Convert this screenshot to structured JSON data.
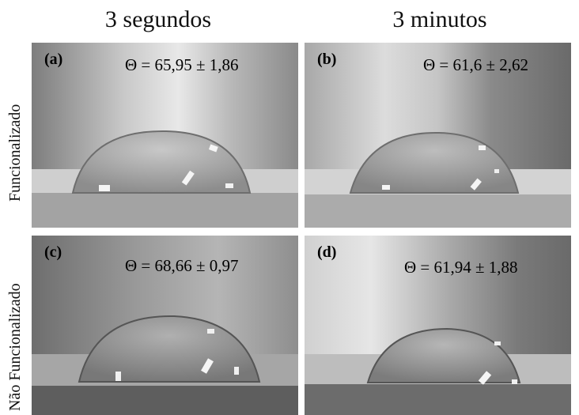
{
  "columns": {
    "left": "3 segundos",
    "right": "3 minutos"
  },
  "rows": {
    "top": "Funcionalizado",
    "bottom": "Não Funcionalizado"
  },
  "panels": {
    "a": {
      "tag": "(a)",
      "angle": "Θ = 65,95 ± 1,86"
    },
    "b": {
      "tag": "(b)",
      "angle": "Θ = 61,6 ± 2,62"
    },
    "c": {
      "tag": "(c)",
      "angle": "Θ = 68,66 ± 0,97"
    },
    "d": {
      "tag": "(d)",
      "angle": "Θ = 61,94 ± 1,88"
    }
  }
}
